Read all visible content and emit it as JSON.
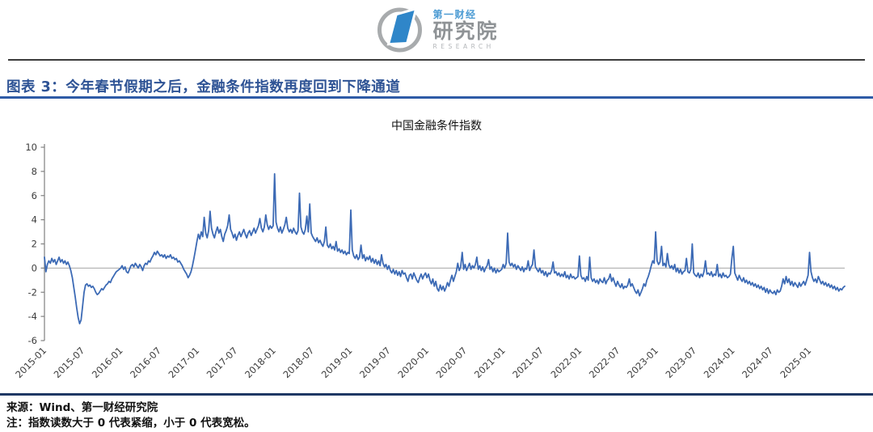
{
  "logo": {
    "brand_cn": "第一财经",
    "org_cn": "研究院",
    "org_en": "RESEARCH",
    "circle_color": "#A8ABAD",
    "mark_color": "#2F86C9"
  },
  "figure_header": {
    "title": "图表 3：今年春节假期之后，金融条件指数再度回到下降通道",
    "title_color": "#2E5395",
    "underline_color": "#2F5BA6"
  },
  "footer": {
    "source": "来源：Wind、第一财经研究院",
    "note": "注：指数读数大于 0 代表紧缩，小于 0 代表宽松。"
  },
  "chart_data": {
    "type": "line",
    "title": "中国金融条件指数",
    "series_name": "中国金融条件指数",
    "line_color": "#3C6AB5",
    "axis_color": "#808080",
    "zero_line_color": "#A6A6A6",
    "tick_text_color": "#3D3D3D",
    "ylim": [
      -6,
      10
    ],
    "yticks": [
      10,
      8,
      6,
      4,
      2,
      0,
      -2,
      -4,
      -6
    ],
    "grid": "zero-line-only",
    "legend": "none",
    "x_start": "2015-01",
    "x_end": "2025-07",
    "x_interval": "weekly",
    "xtick_labels": [
      "2015-01",
      "2015-07",
      "2016-01",
      "2016-07",
      "2017-01",
      "2017-07",
      "2018-01",
      "2018-07",
      "2019-01",
      "2019-07",
      "2020-01",
      "2020-07",
      "2021-01",
      "2021-07",
      "2022-01",
      "2022-07",
      "2023-01",
      "2023-07",
      "2024-01",
      "2024-07",
      "2025-01"
    ],
    "values": [
      0.9,
      -0.3,
      0.3,
      0.6,
      0.4,
      0.8,
      0.5,
      0.7,
      0.3,
      0.6,
      0.9,
      0.5,
      0.7,
      0.4,
      0.6,
      0.3,
      0.5,
      0.2,
      -0.2,
      -0.8,
      -1.6,
      -2.4,
      -3.3,
      -4.1,
      -4.6,
      -4.3,
      -3.2,
      -2.0,
      -1.4,
      -1.3,
      -1.5,
      -1.4,
      -1.6,
      -1.5,
      -1.7,
      -2.0,
      -2.2,
      -2.1,
      -1.9,
      -1.7,
      -1.8,
      -1.6,
      -1.4,
      -1.3,
      -1.1,
      -1.2,
      -0.9,
      -0.7,
      -0.5,
      -0.3,
      -0.2,
      -0.1,
      0.0,
      0.2,
      -0.1,
      0.1,
      -0.3,
      -0.4,
      -0.1,
      0.2,
      0.3,
      0.1,
      0.4,
      0.2,
      0.0,
      0.3,
      0.1,
      -0.2,
      0.2,
      0.4,
      0.3,
      0.6,
      0.5,
      0.8,
      1.0,
      1.3,
      1.1,
      1.4,
      1.2,
      1.0,
      1.1,
      0.9,
      1.1,
      0.8,
      1.0,
      0.9,
      1.1,
      0.8,
      0.9,
      0.7,
      0.8,
      0.5,
      0.6,
      0.4,
      0.2,
      -0.1,
      -0.3,
      -0.5,
      -0.8,
      -0.6,
      -0.3,
      0.2,
      0.8,
      1.5,
      2.2,
      2.8,
      2.4,
      3.0,
      2.6,
      4.2,
      2.9,
      2.5,
      3.1,
      4.7,
      3.3,
      2.8,
      2.5,
      3.0,
      3.4,
      2.9,
      3.2,
      2.6,
      2.2,
      2.8,
      3.1,
      3.5,
      4.4,
      3.2,
      2.9,
      2.5,
      2.8,
      2.3,
      2.7,
      3.0,
      2.6,
      2.9,
      3.2,
      2.8,
      2.5,
      2.9,
      3.1,
      2.7,
      3.0,
      3.3,
      2.9,
      3.2,
      3.5,
      4.1,
      3.3,
      3.0,
      3.4,
      4.4,
      3.6,
      3.2,
      3.5,
      3.3,
      3.5,
      7.8,
      3.8,
      3.3,
      3.0,
      3.4,
      2.9,
      3.2,
      3.6,
      4.2,
      3.3,
      3.0,
      3.2,
      2.9,
      3.3,
      3.0,
      2.8,
      3.1,
      6.2,
      3.4,
      3.0,
      2.8,
      3.2,
      4.3,
      3.0,
      5.3,
      2.9,
      2.6,
      2.4,
      2.2,
      2.5,
      2.1,
      2.3,
      2.0,
      1.8,
      2.2,
      3.4,
      1.9,
      1.7,
      2.0,
      1.6,
      1.8,
      1.5,
      2.2,
      1.4,
      1.6,
      1.3,
      1.5,
      1.2,
      1.4,
      1.1,
      1.3,
      1.2,
      4.8,
      1.5,
      1.0,
      0.8,
      1.1,
      0.7,
      0.9,
      1.9,
      0.8,
      1.1,
      0.6,
      0.9,
      0.7,
      1.0,
      0.5,
      0.8,
      0.4,
      0.7,
      0.3,
      0.6,
      0.2,
      1.1,
      0.4,
      0.1,
      0.3,
      -0.1,
      0.2,
      -0.2,
      -0.4,
      -0.1,
      -0.5,
      -0.2,
      -0.6,
      -0.3,
      -0.7,
      -0.2,
      -0.5,
      -0.4,
      -0.8,
      -1.1,
      -0.6,
      -0.5,
      -0.9,
      -0.4,
      -0.7,
      -1.0,
      -1.2,
      -0.8,
      -0.5,
      -0.9,
      -0.6,
      -0.4,
      -0.8,
      -0.5,
      -1.0,
      -1.3,
      -0.9,
      -1.5,
      -1.1,
      -1.7,
      -1.9,
      -1.4,
      -1.8,
      -1.5,
      -1.9,
      -1.6,
      -1.2,
      -1.5,
      -1.0,
      -0.6,
      -1.1,
      -0.7,
      -0.3,
      0.4,
      -0.2,
      0.1,
      1.3,
      -0.1,
      0.3,
      -0.2,
      0.1,
      0.4,
      -0.1,
      0.2,
      0.0,
      0.3,
      0.9,
      -0.1,
      0.2,
      -0.2,
      0.1,
      -0.3,
      0.0,
      0.2,
      0.7,
      -0.1,
      0.1,
      -0.3,
      0.0,
      -0.4,
      -0.1,
      -0.3,
      -0.2,
      -0.1,
      0.3,
      0.0,
      0.4,
      2.9,
      0.5,
      0.2,
      0.4,
      0.1,
      0.3,
      -0.1,
      0.2,
      0.0,
      -0.2,
      0.1,
      -0.3,
      0.0,
      -0.1,
      0.6,
      -0.2,
      0.1,
      0.3,
      1.5,
      0.1,
      -0.1,
      -0.3,
      0.0,
      -0.4,
      -0.2,
      -0.6,
      -0.3,
      -0.7,
      -0.4,
      -0.5,
      -0.2,
      0.5,
      -0.4,
      -0.3,
      -0.6,
      -0.4,
      -0.7,
      -0.5,
      -0.7,
      -0.3,
      -0.8,
      -0.6,
      -0.9,
      -0.5,
      -0.8,
      -0.7,
      -0.9,
      -0.8,
      -0.7,
      1.0,
      -0.6,
      -0.9,
      -0.8,
      -1.1,
      -0.7,
      -1.0,
      0.9,
      -0.8,
      -1.1,
      -0.9,
      -1.2,
      -1.0,
      -1.3,
      -0.9,
      -1.1,
      -1.2,
      -0.8,
      -1.3,
      -1.0,
      -0.9,
      -0.5,
      -1.1,
      -0.8,
      -1.2,
      -1.5,
      -1.1,
      -1.4,
      -1.6,
      -1.3,
      -1.7,
      -1.5,
      -1.6,
      -1.4,
      -0.9,
      -1.5,
      -1.3,
      -1.6,
      -1.9,
      -2.1,
      -1.8,
      -2.3,
      -2.0,
      -1.7,
      -1.3,
      -1.5,
      -1.0,
      -0.7,
      -0.3,
      0.2,
      0.6,
      0.4,
      3.0,
      0.6,
      0.3,
      0.5,
      1.8,
      0.2,
      0.4,
      0.1,
      1.2,
      0.3,
      0.0,
      0.2,
      -0.1,
      0.3,
      -0.3,
      0.0,
      -0.4,
      -0.1,
      -0.5,
      -0.3,
      -0.2,
      0.8,
      -0.3,
      -0.4,
      -0.1,
      2.0,
      -0.4,
      -0.6,
      -0.7,
      -0.4,
      -0.8,
      -0.5,
      -0.7,
      -0.3,
      0.6,
      -0.5,
      -0.4,
      -0.6,
      -0.3,
      -0.7,
      -0.5,
      -0.6,
      0.3,
      -0.7,
      -0.5,
      -0.8,
      -0.4,
      -0.7,
      -0.6,
      -0.8,
      -0.7,
      -0.5,
      0.8,
      1.8,
      -0.4,
      -0.7,
      -1.0,
      -0.6,
      -0.9,
      -1.1,
      -0.8,
      -1.2,
      -1.0,
      -1.3,
      -1.1,
      -1.4,
      -1.2,
      -1.5,
      -1.3,
      -1.6,
      -1.4,
      -1.7,
      -1.5,
      -1.8,
      -1.6,
      -2.0,
      -1.7,
      -2.1,
      -1.8,
      -2.0,
      -2.1,
      -1.9,
      -2.2,
      -1.8,
      -2.0,
      -1.9,
      -1.5,
      -0.9,
      -1.3,
      -0.7,
      -1.2,
      -0.9,
      -1.4,
      -1.1,
      -1.5,
      -1.2,
      -1.4,
      -1.6,
      -1.2,
      -1.5,
      -1.3,
      -1.1,
      -1.4,
      -1.0,
      -0.6,
      1.3,
      -0.3,
      -0.8,
      -1.1,
      -0.9,
      -1.2,
      -0.7,
      -1.0,
      -1.3,
      -1.1,
      -1.4,
      -1.2,
      -1.5,
      -1.3,
      -1.6,
      -1.4,
      -1.7,
      -1.5,
      -1.8,
      -1.6,
      -1.9,
      -1.7,
      -1.8,
      -1.6,
      -1.5
    ]
  }
}
